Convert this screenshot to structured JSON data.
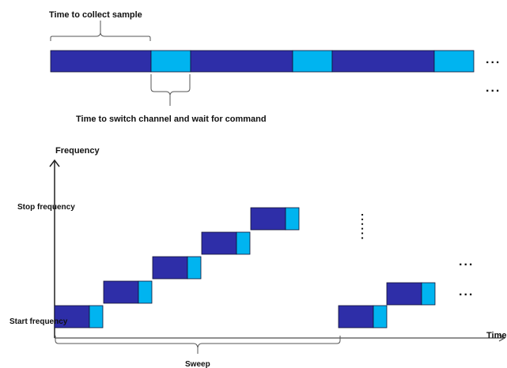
{
  "colors": {
    "sample": "#2e2ea8",
    "switch": "#00b4f0",
    "stroke": "#111133",
    "line": "#222222",
    "bracket": "#555555"
  },
  "top": {
    "collect_label": "Time to collect sample",
    "switch_label": "Time to switch channel and wait for command",
    "continuation_1": "...",
    "continuation_2": "...",
    "segments": [
      "sample",
      "switch",
      "sample",
      "switch",
      "sample",
      "switch"
    ]
  },
  "bottom": {
    "y_axis_label": "Frequency",
    "x_axis_label": "Time",
    "stop_label": "Stop frequency",
    "start_label": "Start frequency",
    "sweep_label": "Sweep",
    "vertical_dots": "......",
    "continuation_1": "...",
    "continuation_2": "...",
    "first_sweep_steps": 5,
    "second_sweep_steps": 2
  }
}
